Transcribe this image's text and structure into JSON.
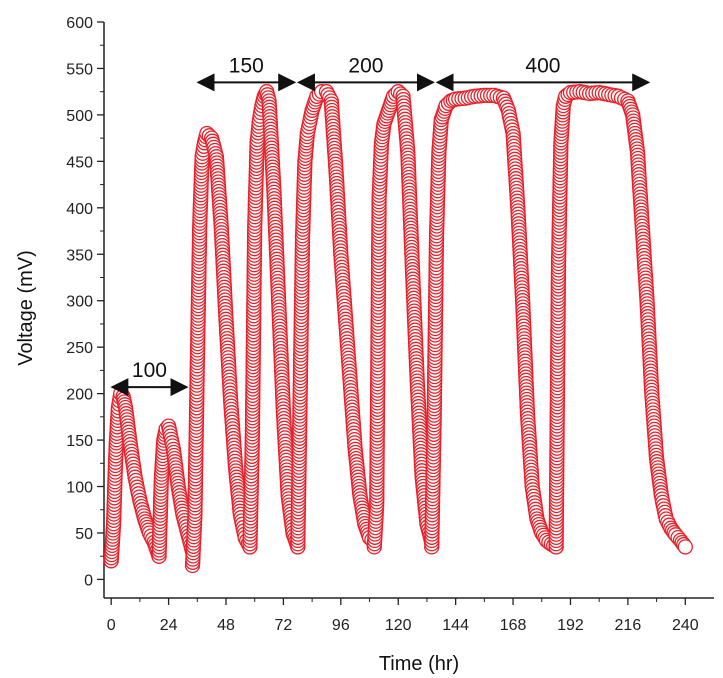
{
  "chart_data": {
    "type": "scatter",
    "xlabel": "Time (hr)",
    "ylabel": "Voltage (mV)",
    "xlim": [
      -3,
      252
    ],
    "ylim": [
      -20,
      600
    ],
    "xticks": [
      0,
      24,
      48,
      72,
      96,
      120,
      144,
      168,
      192,
      216,
      240
    ],
    "yticks": [
      0,
      50,
      100,
      150,
      200,
      250,
      300,
      350,
      400,
      450,
      500,
      550,
      600
    ],
    "grid": false,
    "marker": "open-circle",
    "color": "#e8202a",
    "series": [
      {
        "segments": [
          {
            "x": [
              0,
              1,
              2,
              3,
              4,
              5,
              6,
              7,
              8,
              10,
              12,
              14,
              16,
              18,
              20
            ],
            "y": [
              20,
              60,
              140,
              185,
              200,
              197,
              185,
              165,
              145,
              110,
              85,
              65,
              50,
              40,
              25
            ]
          },
          {
            "x": [
              20,
              21,
              22,
              23,
              24,
              26,
              28,
              30,
              32,
              34
            ],
            "y": [
              25,
              110,
              150,
              162,
              165,
              140,
              100,
              70,
              50,
              30
            ]
          },
          {
            "x": [
              34,
              35,
              36,
              37,
              38,
              39,
              40,
              42,
              44,
              46,
              48,
              50,
              52,
              54,
              56,
              58
            ],
            "y": [
              15,
              70,
              230,
              380,
              455,
              470,
              480,
              475,
              455,
              380,
              280,
              190,
              120,
              70,
              45,
              35
            ]
          },
          {
            "x": [
              58,
              59,
              60,
              61,
              62,
              63,
              64,
              65,
              66,
              68,
              70,
              72,
              74,
              76,
              78
            ],
            "y": [
              35,
              150,
              380,
              470,
              495,
              510,
              520,
              525,
              515,
              420,
              300,
              180,
              90,
              50,
              35
            ]
          },
          {
            "x": [
              78,
              79,
              80,
              81,
              82,
              84,
              86,
              88,
              90,
              92,
              94,
              96,
              98,
              100,
              102,
              104,
              106,
              108,
              110
            ],
            "y": [
              35,
              200,
              370,
              450,
              480,
              505,
              520,
              525,
              525,
              515,
              440,
              350,
              280,
              210,
              140,
              90,
              60,
              45,
              40
            ]
          },
          {
            "x": [
              110,
              111,
              112,
              113,
              114,
              116,
              118,
              120,
              122,
              124,
              126,
              128,
              130,
              132,
              134
            ],
            "y": [
              35,
              80,
              410,
              470,
              490,
              505,
              520,
              525,
              520,
              460,
              330,
              210,
              110,
              60,
              40
            ]
          },
          {
            "x": [
              134,
              135,
              136,
              137,
              138,
              140,
              142,
              144,
              148,
              152,
              156,
              160,
              164,
              166,
              168,
              170,
              172,
              174,
              176,
              178,
              180,
              182,
              184,
              186
            ],
            "y": [
              35,
              170,
              370,
              460,
              495,
              510,
              515,
              517,
              518,
              520,
              521,
              521,
              518,
              505,
              480,
              400,
              300,
              180,
              100,
              65,
              50,
              42,
              38,
              35
            ]
          },
          {
            "x": [
              186,
              187,
              188,
              189,
              190,
              192,
              196,
              200,
              204,
              208,
              212,
              216,
              218,
              220,
              222,
              224,
              226,
              228,
              230,
              232,
              234,
              236,
              238,
              240
            ],
            "y": [
              35,
              340,
              470,
              510,
              520,
              524,
              525,
              523,
              524,
              522,
              520,
              515,
              500,
              460,
              380,
              300,
              200,
              130,
              90,
              65,
              55,
              48,
              42,
              35
            ]
          }
        ]
      }
    ],
    "annotations": [
      {
        "label": "100",
        "x_start": 0,
        "x_end": 32,
        "y": 207
      },
      {
        "label": "150",
        "x_start": 36,
        "x_end": 77,
        "y": 535
      },
      {
        "label": "200",
        "x_start": 78,
        "x_end": 135,
        "y": 535
      },
      {
        "label": "400",
        "x_start": 136,
        "x_end": 225,
        "y": 535
      }
    ]
  }
}
